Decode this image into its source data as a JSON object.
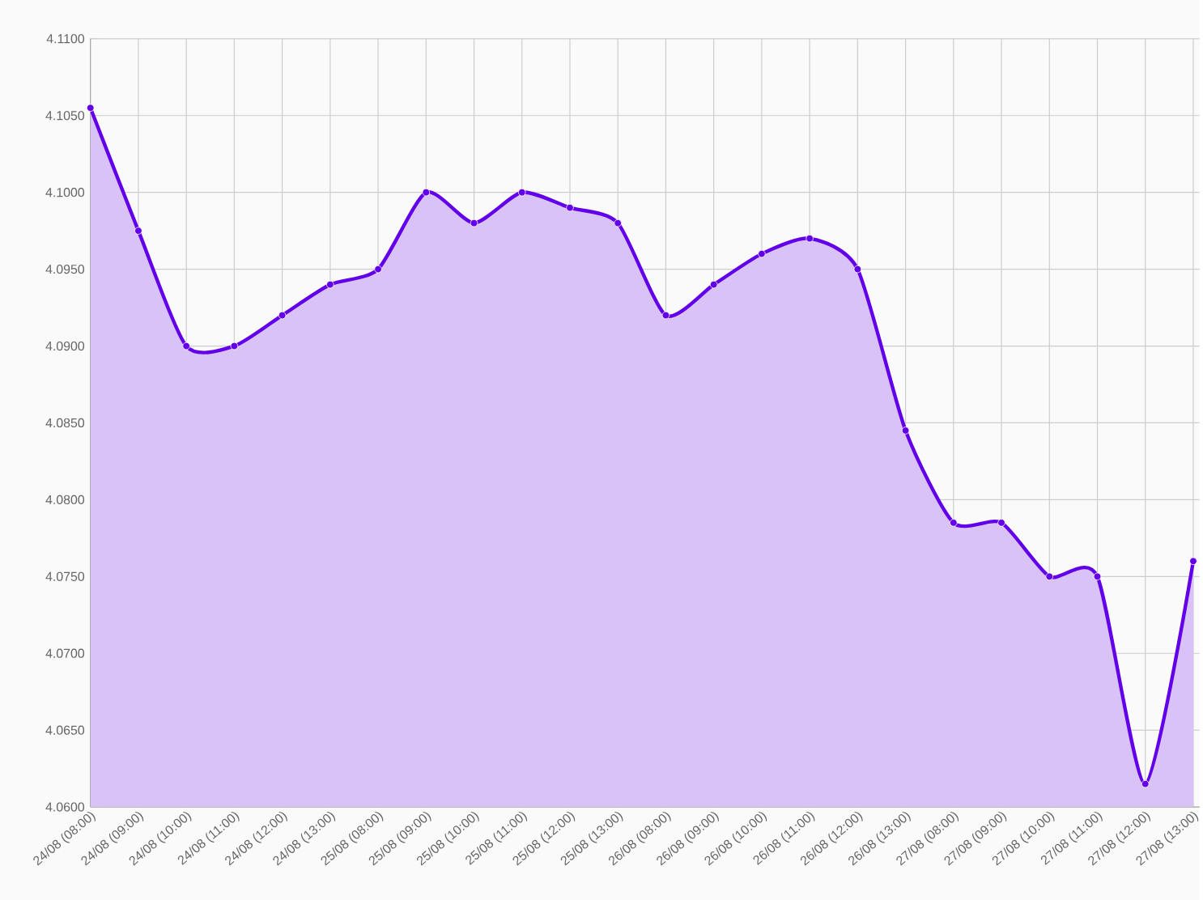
{
  "chart_data": {
    "type": "area",
    "categories": [
      "24/08 (08:00)",
      "24/08 (09:00)",
      "24/08 (10:00)",
      "24/08 (11:00)",
      "24/08 (12:00)",
      "24/08 (13:00)",
      "25/08 (08:00)",
      "25/08 (09:00)",
      "25/08 (10:00)",
      "25/08 (11:00)",
      "25/08 (12:00)",
      "25/08 (13:00)",
      "26/08 (08:00)",
      "26/08 (09:00)",
      "26/08 (10:00)",
      "26/08 (11:00)",
      "26/08 (12:00)",
      "26/08 (13:00)",
      "27/08 (08:00)",
      "27/08 (09:00)",
      "27/08 (10:00)",
      "27/08 (11:00)",
      "27/08 (12:00)",
      "27/08 (13:00)"
    ],
    "series": [
      {
        "color": "#6200ea",
        "values": [
          4.1055,
          4.0975,
          4.09,
          4.09,
          4.092,
          4.094,
          4.095,
          4.1,
          4.098,
          4.1,
          4.099,
          4.098,
          4.092,
          4.094,
          4.096,
          4.097,
          4.095,
          4.0845,
          4.0785,
          4.0785,
          4.075,
          4.075,
          4.0615,
          4.076
        ]
      }
    ],
    "ylim": [
      4.06,
      4.11
    ],
    "yticks": [
      {
        "value": 4.06,
        "label": "4.0600"
      },
      {
        "value": 4.065,
        "label": "4.0650"
      },
      {
        "value": 4.07,
        "label": "4.0700"
      },
      {
        "value": 4.075,
        "label": "4.0750"
      },
      {
        "value": 4.08,
        "label": "4.0800"
      },
      {
        "value": 4.085,
        "label": "4.0850"
      },
      {
        "value": 4.09,
        "label": "4.0900"
      },
      {
        "value": 4.095,
        "label": "4.0950"
      },
      {
        "value": 4.1,
        "label": "4.1000"
      },
      {
        "value": 4.105,
        "label": "4.1050"
      },
      {
        "value": 4.11,
        "label": "4.1100"
      }
    ],
    "grid": true,
    "marker": "circle",
    "line_style": "solid"
  }
}
